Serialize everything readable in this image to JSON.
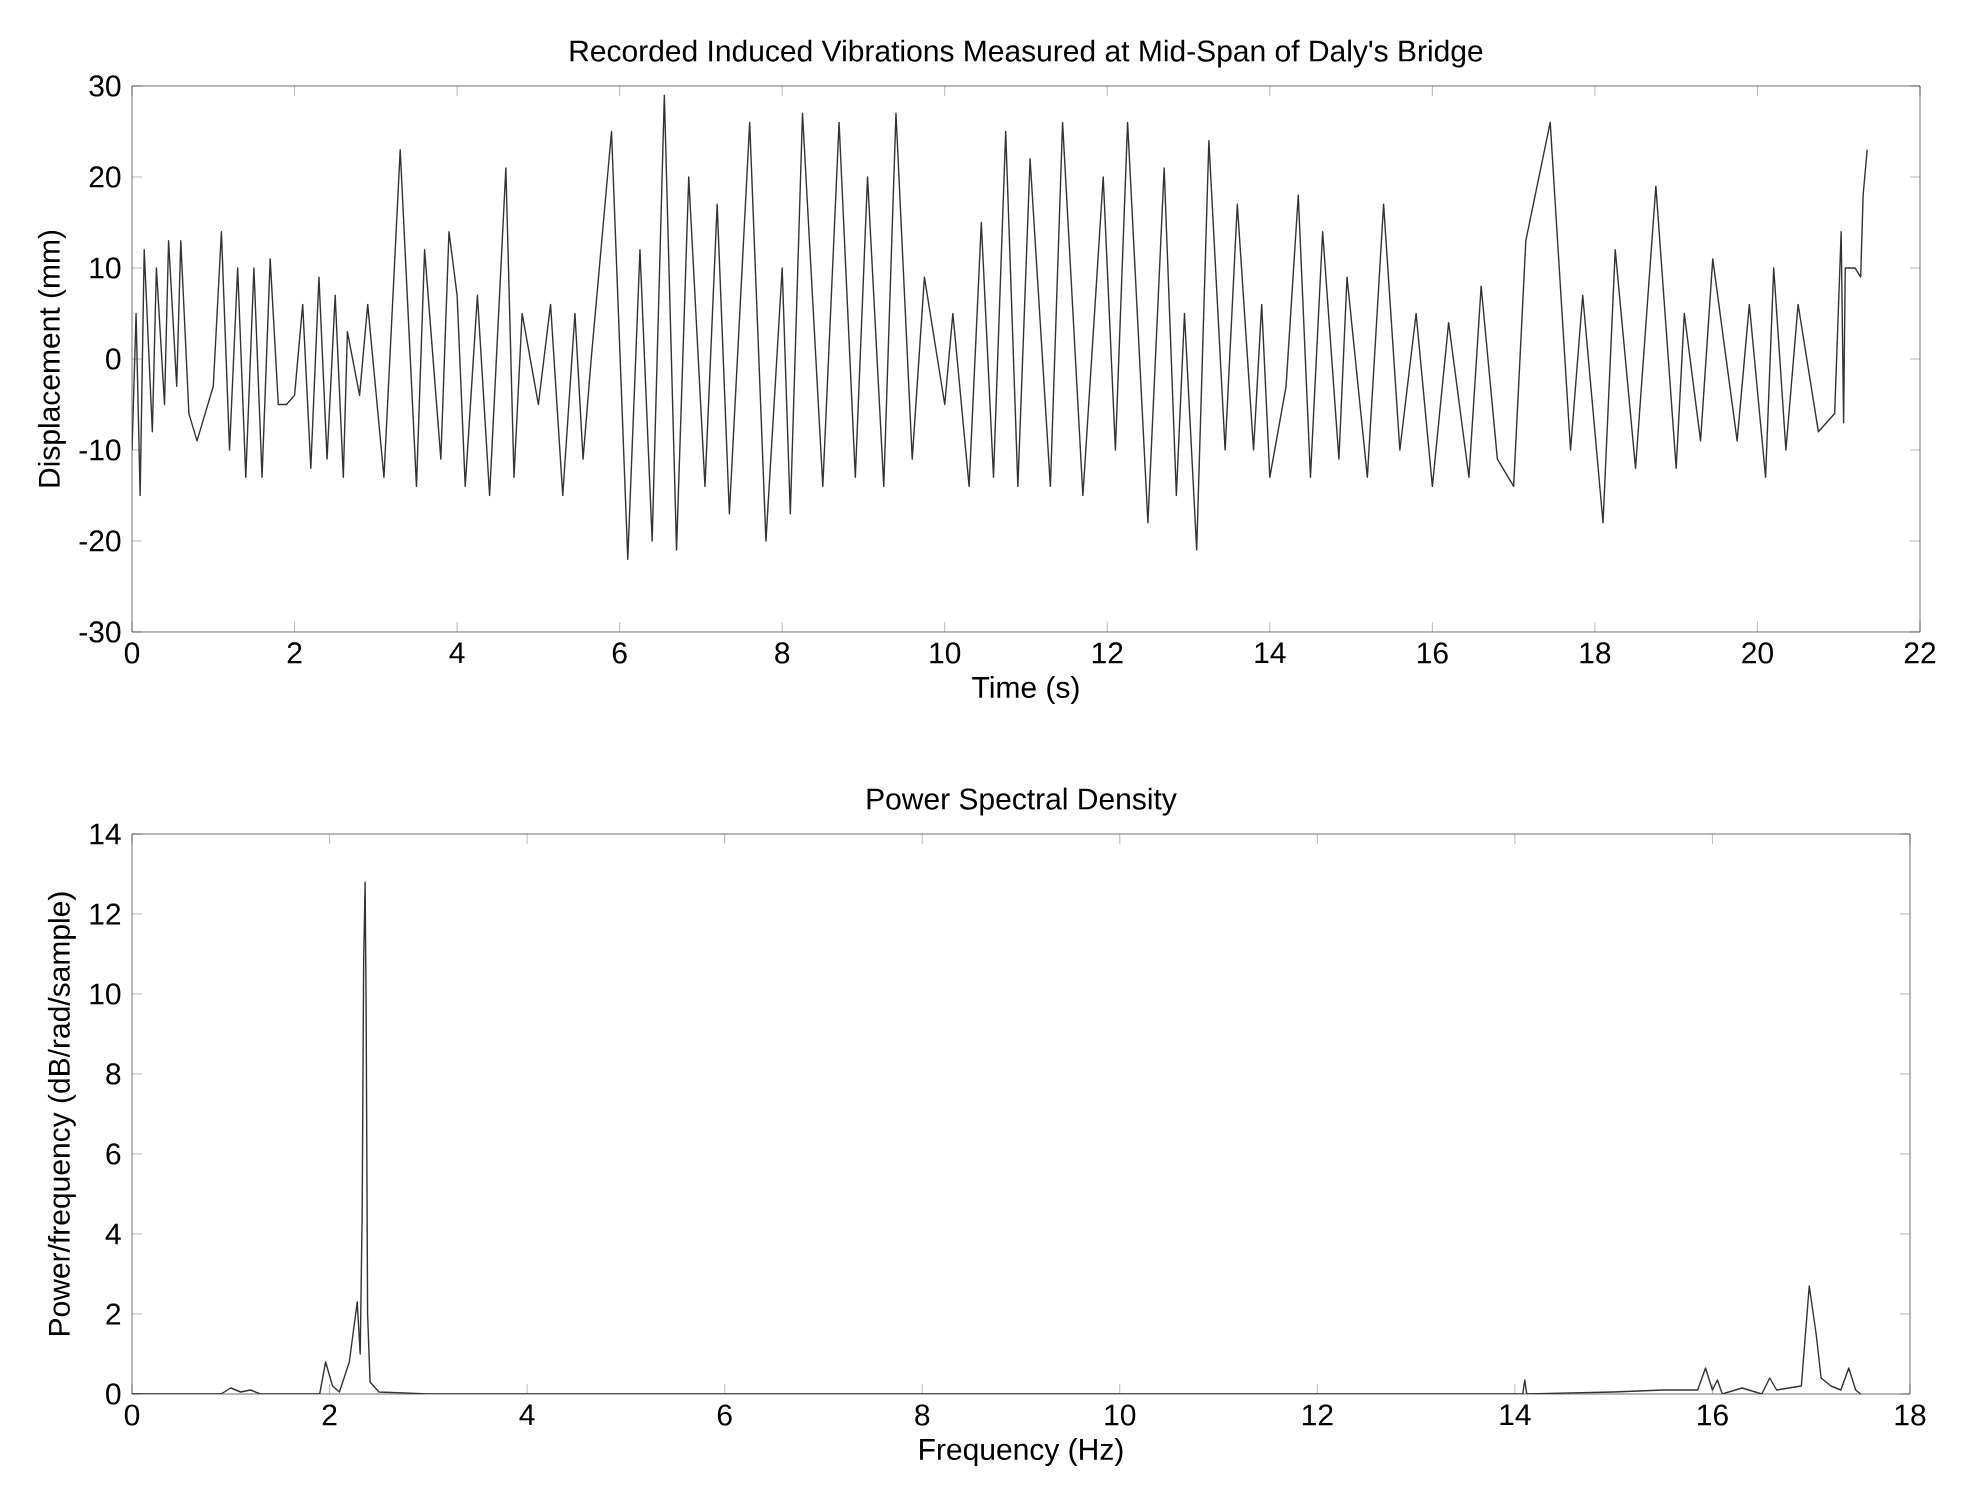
{
  "chart_data": [
    {
      "type": "line",
      "title": "Recorded Induced Vibrations Measured at Mid-Span of Daly's Bridge",
      "xlabel": "Time (s)",
      "ylabel": "Displacement (mm)",
      "xlim": [
        0,
        22
      ],
      "ylim": [
        -30,
        30
      ],
      "xticks": [
        0,
        2,
        4,
        6,
        8,
        10,
        12,
        14,
        16,
        18,
        20,
        22
      ],
      "yticks": [
        -30,
        -20,
        -10,
        0,
        10,
        20,
        30
      ],
      "grid": false,
      "line_style": "solid",
      "marker": "none",
      "series": [
        {
          "color": "#333333",
          "x": [
            0,
            0.05,
            0.1,
            0.15,
            0.25,
            0.3,
            0.4,
            0.45,
            0.55,
            0.6,
            0.7,
            0.8,
            1.0,
            1.1,
            1.2,
            1.3,
            1.4,
            1.5,
            1.6,
            1.7,
            1.8,
            1.9,
            2.0,
            2.1,
            2.2,
            2.3,
            2.4,
            2.5,
            2.6,
            2.65,
            2.8,
            2.9,
            3.1,
            3.3,
            3.5,
            3.6,
            3.8,
            3.9,
            4.0,
            4.1,
            4.25,
            4.4,
            4.6,
            4.7,
            4.8,
            5.0,
            5.15,
            5.3,
            5.45,
            5.55,
            5.65,
            5.9,
            6.1,
            6.25,
            6.4,
            6.55,
            6.7,
            6.85,
            7.05,
            7.2,
            7.35,
            7.6,
            7.8,
            8.0,
            8.1,
            8.25,
            8.5,
            8.7,
            8.9,
            9.05,
            9.25,
            9.4,
            9.6,
            9.75,
            10.0,
            10.1,
            10.3,
            10.45,
            10.6,
            10.75,
            10.9,
            11.05,
            11.3,
            11.45,
            11.7,
            11.95,
            12.1,
            12.25,
            12.5,
            12.7,
            12.85,
            12.95,
            13.1,
            13.25,
            13.45,
            13.6,
            13.8,
            13.9,
            14.0,
            14.2,
            14.35,
            14.5,
            14.65,
            14.85,
            14.95,
            15.2,
            15.4,
            15.6,
            15.8,
            16.0,
            16.2,
            16.45,
            16.6,
            16.8,
            17.0,
            17.15,
            17.45,
            17.7,
            17.85,
            18.1,
            18.25,
            18.5,
            18.75,
            19.0,
            19.1,
            19.3,
            19.45,
            19.75,
            19.9,
            20.1,
            20.2,
            20.35,
            20.5,
            20.75,
            20.95,
            21.03,
            21.06,
            21.08,
            21.2,
            21.27,
            21.3,
            21.35
          ],
          "values": [
            -10,
            5,
            -15,
            12,
            -8,
            10,
            -5,
            13,
            -3,
            13,
            -6,
            -9,
            -3,
            14,
            -10,
            10,
            -13,
            10,
            -13,
            11,
            -5,
            -5,
            -4,
            6,
            -12,
            9,
            -11,
            7,
            -13,
            3,
            -4,
            6,
            -13,
            23,
            -14,
            12,
            -11,
            14,
            7,
            -14,
            7,
            -15,
            21,
            -13,
            5,
            -5,
            6,
            -15,
            5,
            -11,
            0,
            25,
            -22,
            12,
            -20,
            29,
            -21,
            20,
            -14,
            17,
            -17,
            26,
            -20,
            10,
            -17,
            27,
            -14,
            26,
            -13,
            20,
            -14,
            27,
            -11,
            9,
            -5,
            5,
            -14,
            15,
            -13,
            25,
            -14,
            22,
            -14,
            26,
            -15,
            20,
            -10,
            26,
            -18,
            21,
            -15,
            5,
            -21,
            24,
            -10,
            17,
            -10,
            6,
            -13,
            -3,
            18,
            -13,
            14,
            -11,
            9,
            -13,
            17,
            -10,
            5,
            -14,
            4,
            -13,
            8,
            -11,
            -14,
            13,
            26,
            -10,
            7,
            -18,
            12,
            -12,
            19,
            -12,
            5,
            -9,
            11,
            -9,
            6,
            -13,
            10,
            -10,
            6,
            -8,
            -6,
            14,
            -7,
            10,
            10,
            9,
            18,
            23
          ]
        }
      ]
    },
    {
      "type": "line",
      "title": "Power Spectral Density",
      "xlabel": "Frequency (Hz)",
      "ylabel": "Power/frequency (dB/rad/sample)",
      "xlim": [
        0,
        18
      ],
      "ylim": [
        0,
        14
      ],
      "xticks": [
        0,
        2,
        4,
        6,
        8,
        10,
        12,
        14,
        16,
        18
      ],
      "yticks": [
        0,
        2,
        4,
        6,
        8,
        10,
        12,
        14
      ],
      "grid": false,
      "line_style": "solid",
      "marker": "none",
      "series": [
        {
          "color": "#333333",
          "x": [
            0,
            0.9,
            1.0,
            1.1,
            1.2,
            1.3,
            1.9,
            1.96,
            2.03,
            2.1,
            2.2,
            2.28,
            2.31,
            2.33,
            2.345,
            2.36,
            2.37,
            2.385,
            2.41,
            2.5,
            3,
            14.08,
            14.1,
            14.12,
            15,
            15.5,
            15.85,
            15.93,
            16.0,
            16.05,
            16.1,
            16.3,
            16.5,
            16.58,
            16.65,
            16.9,
            16.98,
            17.05,
            17.1,
            17.2,
            17.3,
            17.38,
            17.45,
            17.5
          ],
          "values": [
            0,
            0,
            0.15,
            0.05,
            0.1,
            0,
            0,
            0.8,
            0.2,
            0.05,
            0.8,
            2.3,
            1.0,
            4.5,
            10.8,
            12.8,
            9.7,
            2.0,
            0.3,
            0.05,
            0,
            0,
            0.35,
            0,
            0.05,
            0.1,
            0.1,
            0.65,
            0.1,
            0.35,
            0,
            0.15,
            0,
            0.4,
            0.1,
            0.2,
            2.7,
            1.5,
            0.4,
            0.2,
            0.1,
            0.65,
            0.1,
            0
          ]
        }
      ]
    }
  ]
}
